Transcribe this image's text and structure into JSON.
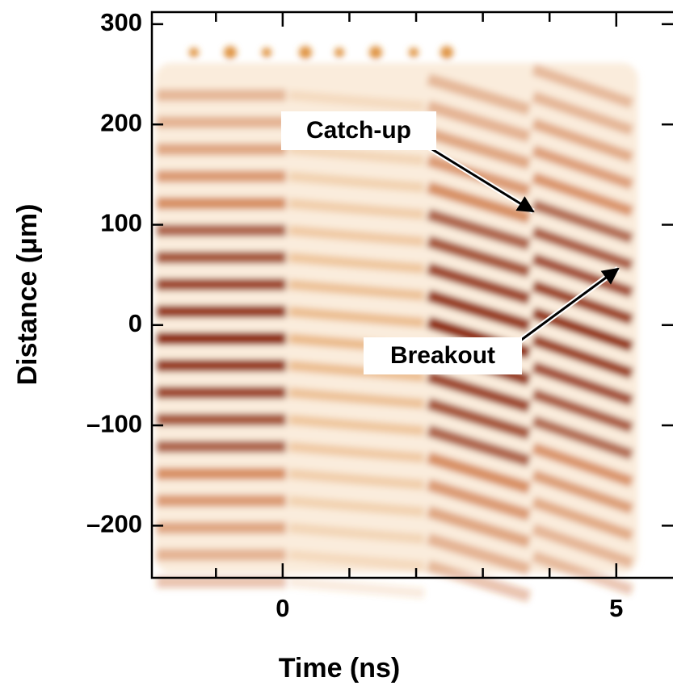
{
  "chart_data": {
    "type": "image",
    "xlabel": "Time (ns)",
    "ylabel": "Distance (μm)",
    "xlim": [
      -1.96,
      5.85
    ],
    "xticks": [
      0,
      5
    ],
    "xminorticks": [
      -1,
      1,
      2,
      3,
      4
    ],
    "ylim": [
      -252,
      312
    ],
    "yticks": [
      300,
      200,
      100,
      0,
      {
        "value": -100,
        "label": "–100"
      },
      {
        "value": -200,
        "label": "–200"
      }
    ],
    "annotations": [
      "Catch-up",
      "Breakout"
    ]
  }
}
